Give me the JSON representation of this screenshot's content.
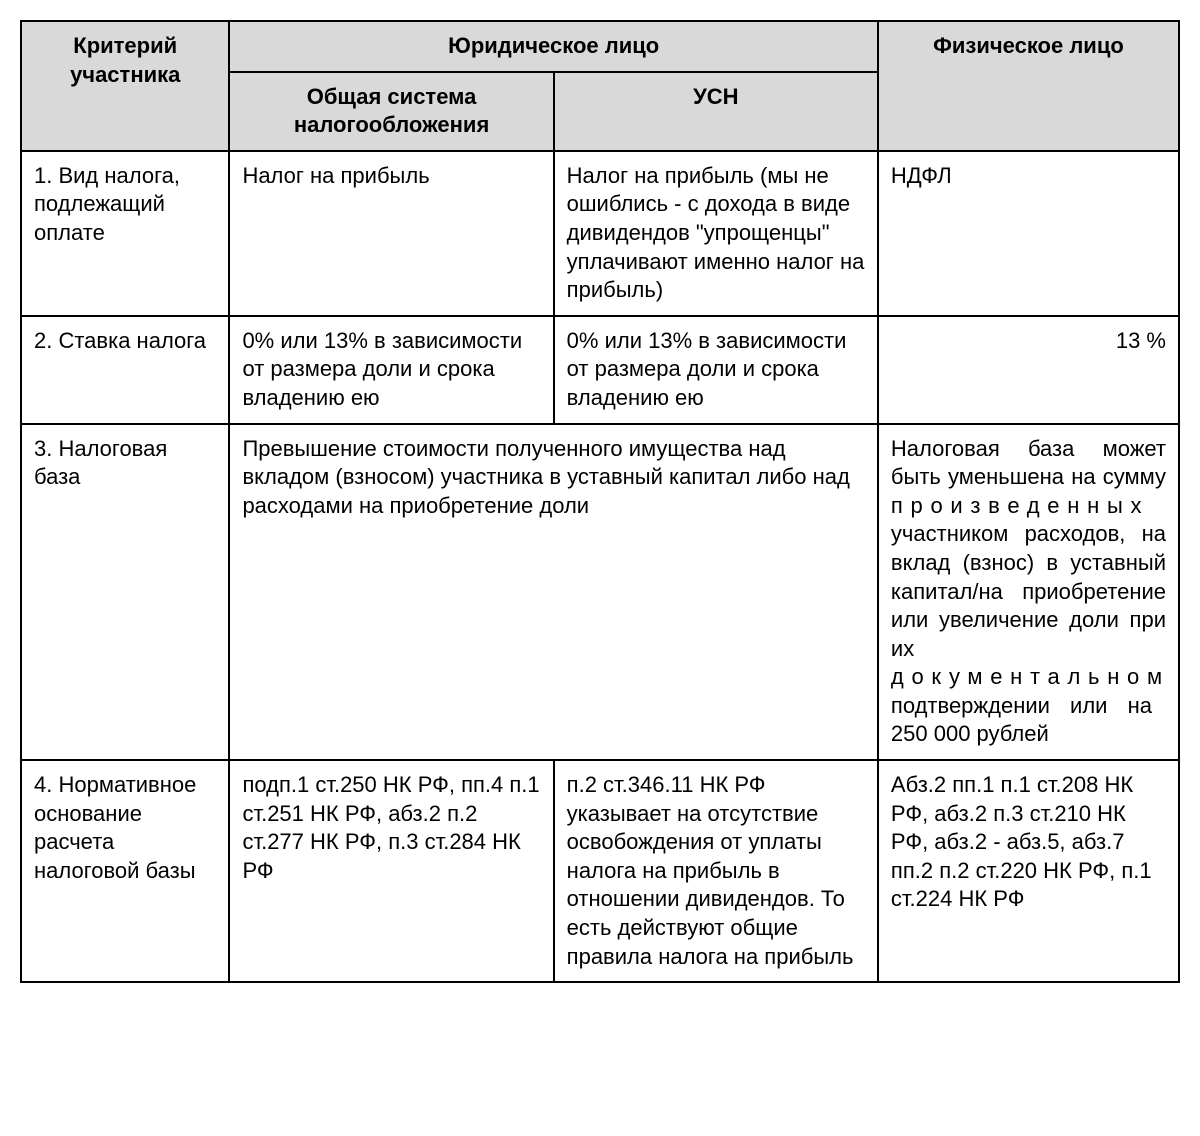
{
  "headers": {
    "criteria": "Критерий участника",
    "legal_entity": "Юридическое лицо",
    "general_system": "Общая система налогообложения",
    "usn": "УСН",
    "individual": "Физическое лицо"
  },
  "rows": {
    "row1": {
      "criteria": "1. Вид налога, подлежащий оплате",
      "general": "Налог на прибыль",
      "usn": "Налог на прибыль (мы не ошиблись - с дохода в виде дивидендов \"упрощенцы\" уплачивают именно налог на прибыль)",
      "individual": "НДФЛ"
    },
    "row2": {
      "criteria": "2. Ставка налога",
      "general": "0% или 13% в зависимости от размера доли и срока владению ею",
      "usn": "0% или 13% в зависимости от размера доли и срока владению ею",
      "individual": "13 %"
    },
    "row3": {
      "criteria": "3. Налоговая база",
      "legal_merged": "Превышение стоимости полученного имущества над вкладом (взносом) участника в уставный капитал либо над расходами на приобретение доли",
      "individual_p1": "Налоговая база может быть уменьшена на сумму ",
      "individual_spaced1": "произведенных",
      "individual_p2": " участником расходов, на вклад (взнос) в уставный капитал/на приобретение или увеличение доли при их ",
      "individual_spaced2": "документальном",
      "individual_p3": " подтверждении или на 250 000 рублей"
    },
    "row4": {
      "criteria": "4. Нормативное основание расчета налоговой базы",
      "general": "подп.1 ст.250 НК РФ, пп.4 п.1 ст.251 НК РФ, абз.2 п.2 ст.277 НК РФ, п.3 ст.284 НК РФ",
      "usn": "п.2 ст.346.11 НК РФ указывает на отсутствие освобождения от уплаты налога на прибыль в отношении дивидендов. То есть действуют общие правила налога на прибыль",
      "individual": "Абз.2 пп.1 п.1 ст.208 НК РФ, абз.2 п.3 ст.210 НК РФ, абз.2 - абз.5, абз.7 пп.2 п.2 ст.220 НК РФ, п.1 ст.224 НК РФ"
    }
  },
  "styles": {
    "header_bg": "#d9d9d9",
    "border_color": "#000000",
    "text_color": "#000000",
    "font_size": 22
  }
}
